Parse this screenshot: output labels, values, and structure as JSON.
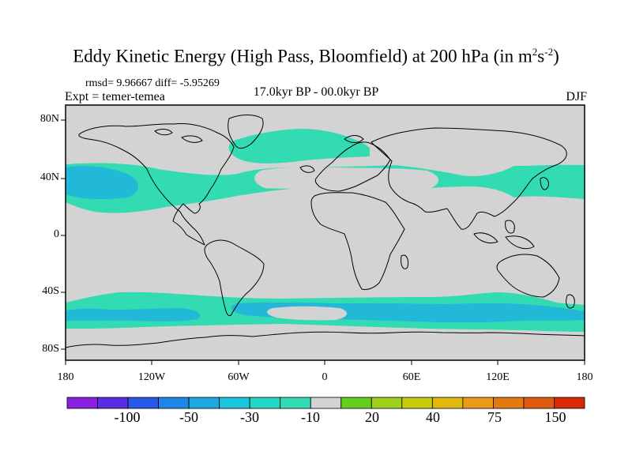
{
  "map": {
    "title": "Eddy Kinetic Energy (High Pass, Bloomfield) at 200 hPa (in m",
    "title_sup1": "2",
    "title_mid": "s",
    "title_sup2": "-2",
    "title_end": ")",
    "stats": "rmsd= 9.96667 diff= -5.95269",
    "experiment": "Expt = temer-temea",
    "period": "17.0kyr BP - 00.0kyr BP",
    "season": "DJF",
    "lat_ticks": [
      "80N",
      "40N",
      "0",
      "40S",
      "80S"
    ],
    "lon_ticks": [
      "180",
      "120W",
      "60W",
      "0",
      "60E",
      "120E",
      "180"
    ],
    "land_color": "#d3d3d3",
    "anomaly_color": "#33dbb3",
    "strong_anomaly_color": "#22b8d8"
  },
  "colorbar": {
    "labels": [
      "-100",
      "-50",
      "-30",
      "-10",
      "20",
      "40",
      "75",
      "150"
    ],
    "colors": [
      "#8a20e0",
      "#5a2de0",
      "#2a58e6",
      "#1d86e6",
      "#1ea8e0",
      "#1cc4dc",
      "#22d8c4",
      "#33dbb3",
      "#d3d3d3",
      "#63cf1c",
      "#9ed11c",
      "#c4cc0c",
      "#e0b810",
      "#e89a18",
      "#e27a10",
      "#de5a10",
      "#d82808"
    ]
  }
}
